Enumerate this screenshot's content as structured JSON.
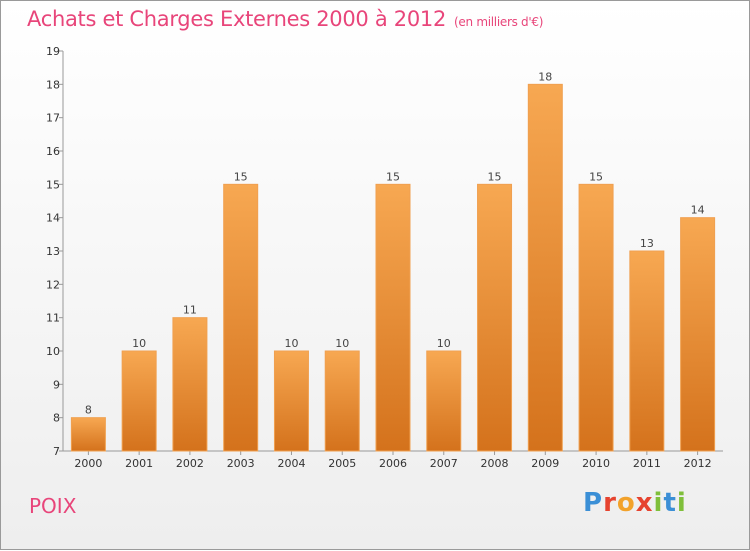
{
  "title": "Achats et Charges Externes 2000 à 2012",
  "subtitle": "(en milliers d'€)",
  "place": "POIX",
  "logo_text": "Proxiti",
  "colors": {
    "accent": "#e8457a",
    "bar_top": "#f7a852",
    "bar_bottom": "#d4721c"
  },
  "chart_data": {
    "type": "bar",
    "categories": [
      "2000",
      "2001",
      "2002",
      "2003",
      "2004",
      "2005",
      "2006",
      "2007",
      "2008",
      "2009",
      "2010",
      "2011",
      "2012"
    ],
    "values": [
      8,
      10,
      11,
      15,
      10,
      10,
      15,
      10,
      15,
      18,
      15,
      13,
      14
    ],
    "title": "Achats et Charges Externes 2000 à 2012",
    "xlabel": "",
    "ylabel": "",
    "ylim": [
      7,
      19
    ],
    "yticks": [
      7,
      8,
      9,
      10,
      11,
      12,
      13,
      14,
      15,
      16,
      17,
      18,
      19
    ],
    "grid": false,
    "data_labels": true
  }
}
